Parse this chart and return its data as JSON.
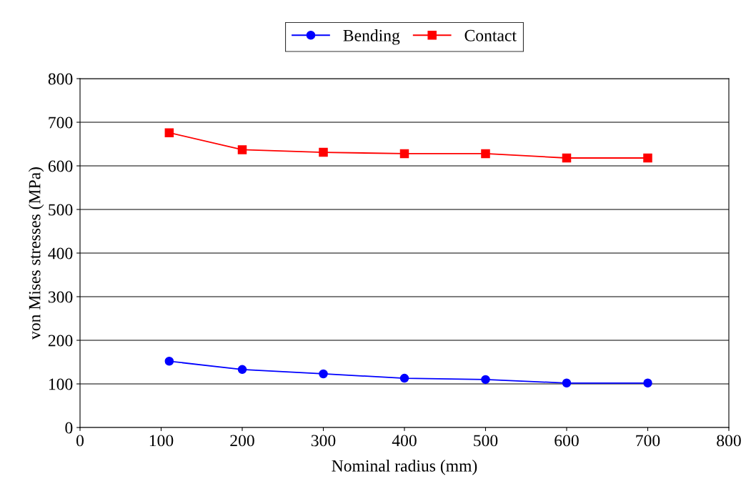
{
  "chart_data": {
    "type": "line",
    "xlabel": "Nominal radius (mm)",
    "ylabel": "von Mises stresses (MPa)",
    "x": [
      110,
      200,
      300,
      400,
      500,
      600,
      700
    ],
    "series": [
      {
        "name": "Bending",
        "color": "#0000ff",
        "marker": "circle",
        "values": [
          152,
          133,
          123,
          113,
          110,
          102,
          102
        ]
      },
      {
        "name": "Contact",
        "color": "#ff0000",
        "marker": "square",
        "values": [
          676,
          637,
          631,
          628,
          628,
          618,
          618
        ]
      }
    ],
    "xlim": [
      0,
      800
    ],
    "xticks": [
      0,
      100,
      200,
      300,
      400,
      500,
      600,
      700,
      800
    ],
    "ylim": [
      0,
      800
    ],
    "yticks": [
      0,
      100,
      200,
      300,
      400,
      500,
      600,
      700,
      800
    ],
    "grid": "y",
    "legend": "top",
    "line_style": "solid"
  }
}
